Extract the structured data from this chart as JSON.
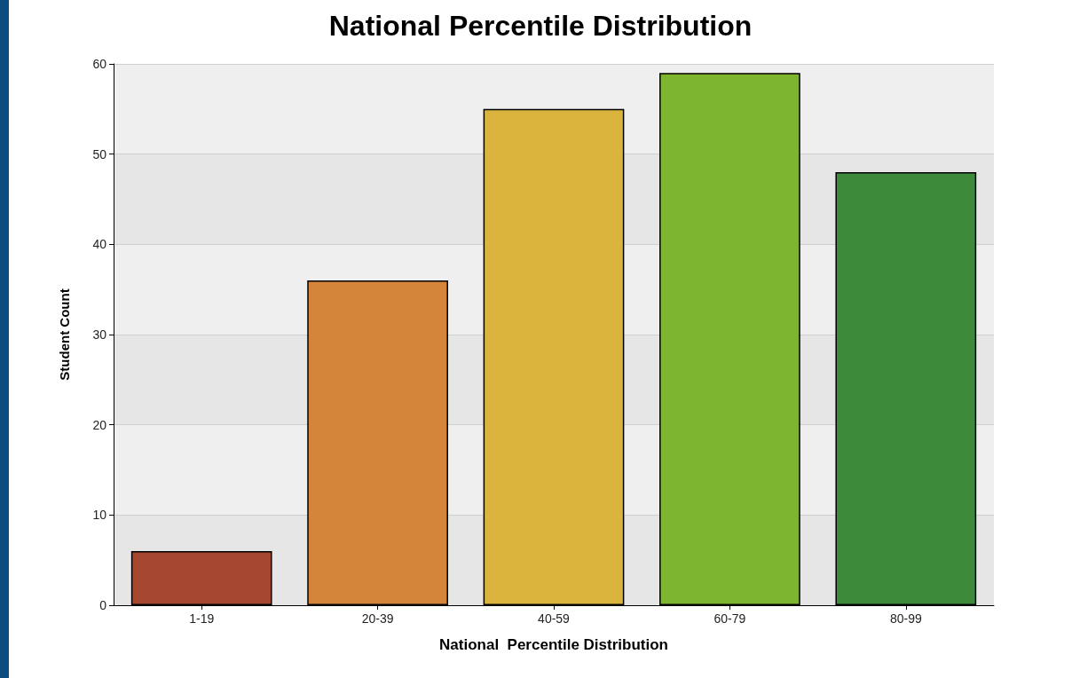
{
  "chart_data": {
    "type": "bar",
    "title": "National Percentile Distribution",
    "xlabel": "National  Percentile Distribution",
    "ylabel": "Student Count",
    "categories": [
      "1-19",
      "20-39",
      "40-59",
      "60-79",
      "80-99"
    ],
    "values": [
      6,
      36,
      55,
      59,
      48
    ],
    "colors": [
      "#a5472f",
      "#d5853a",
      "#dbb43e",
      "#7db52f",
      "#3d8a3a"
    ],
    "ylim": [
      0,
      60
    ],
    "yticks": [
      0,
      10,
      20,
      30,
      40,
      50,
      60
    ],
    "grid": "y"
  }
}
